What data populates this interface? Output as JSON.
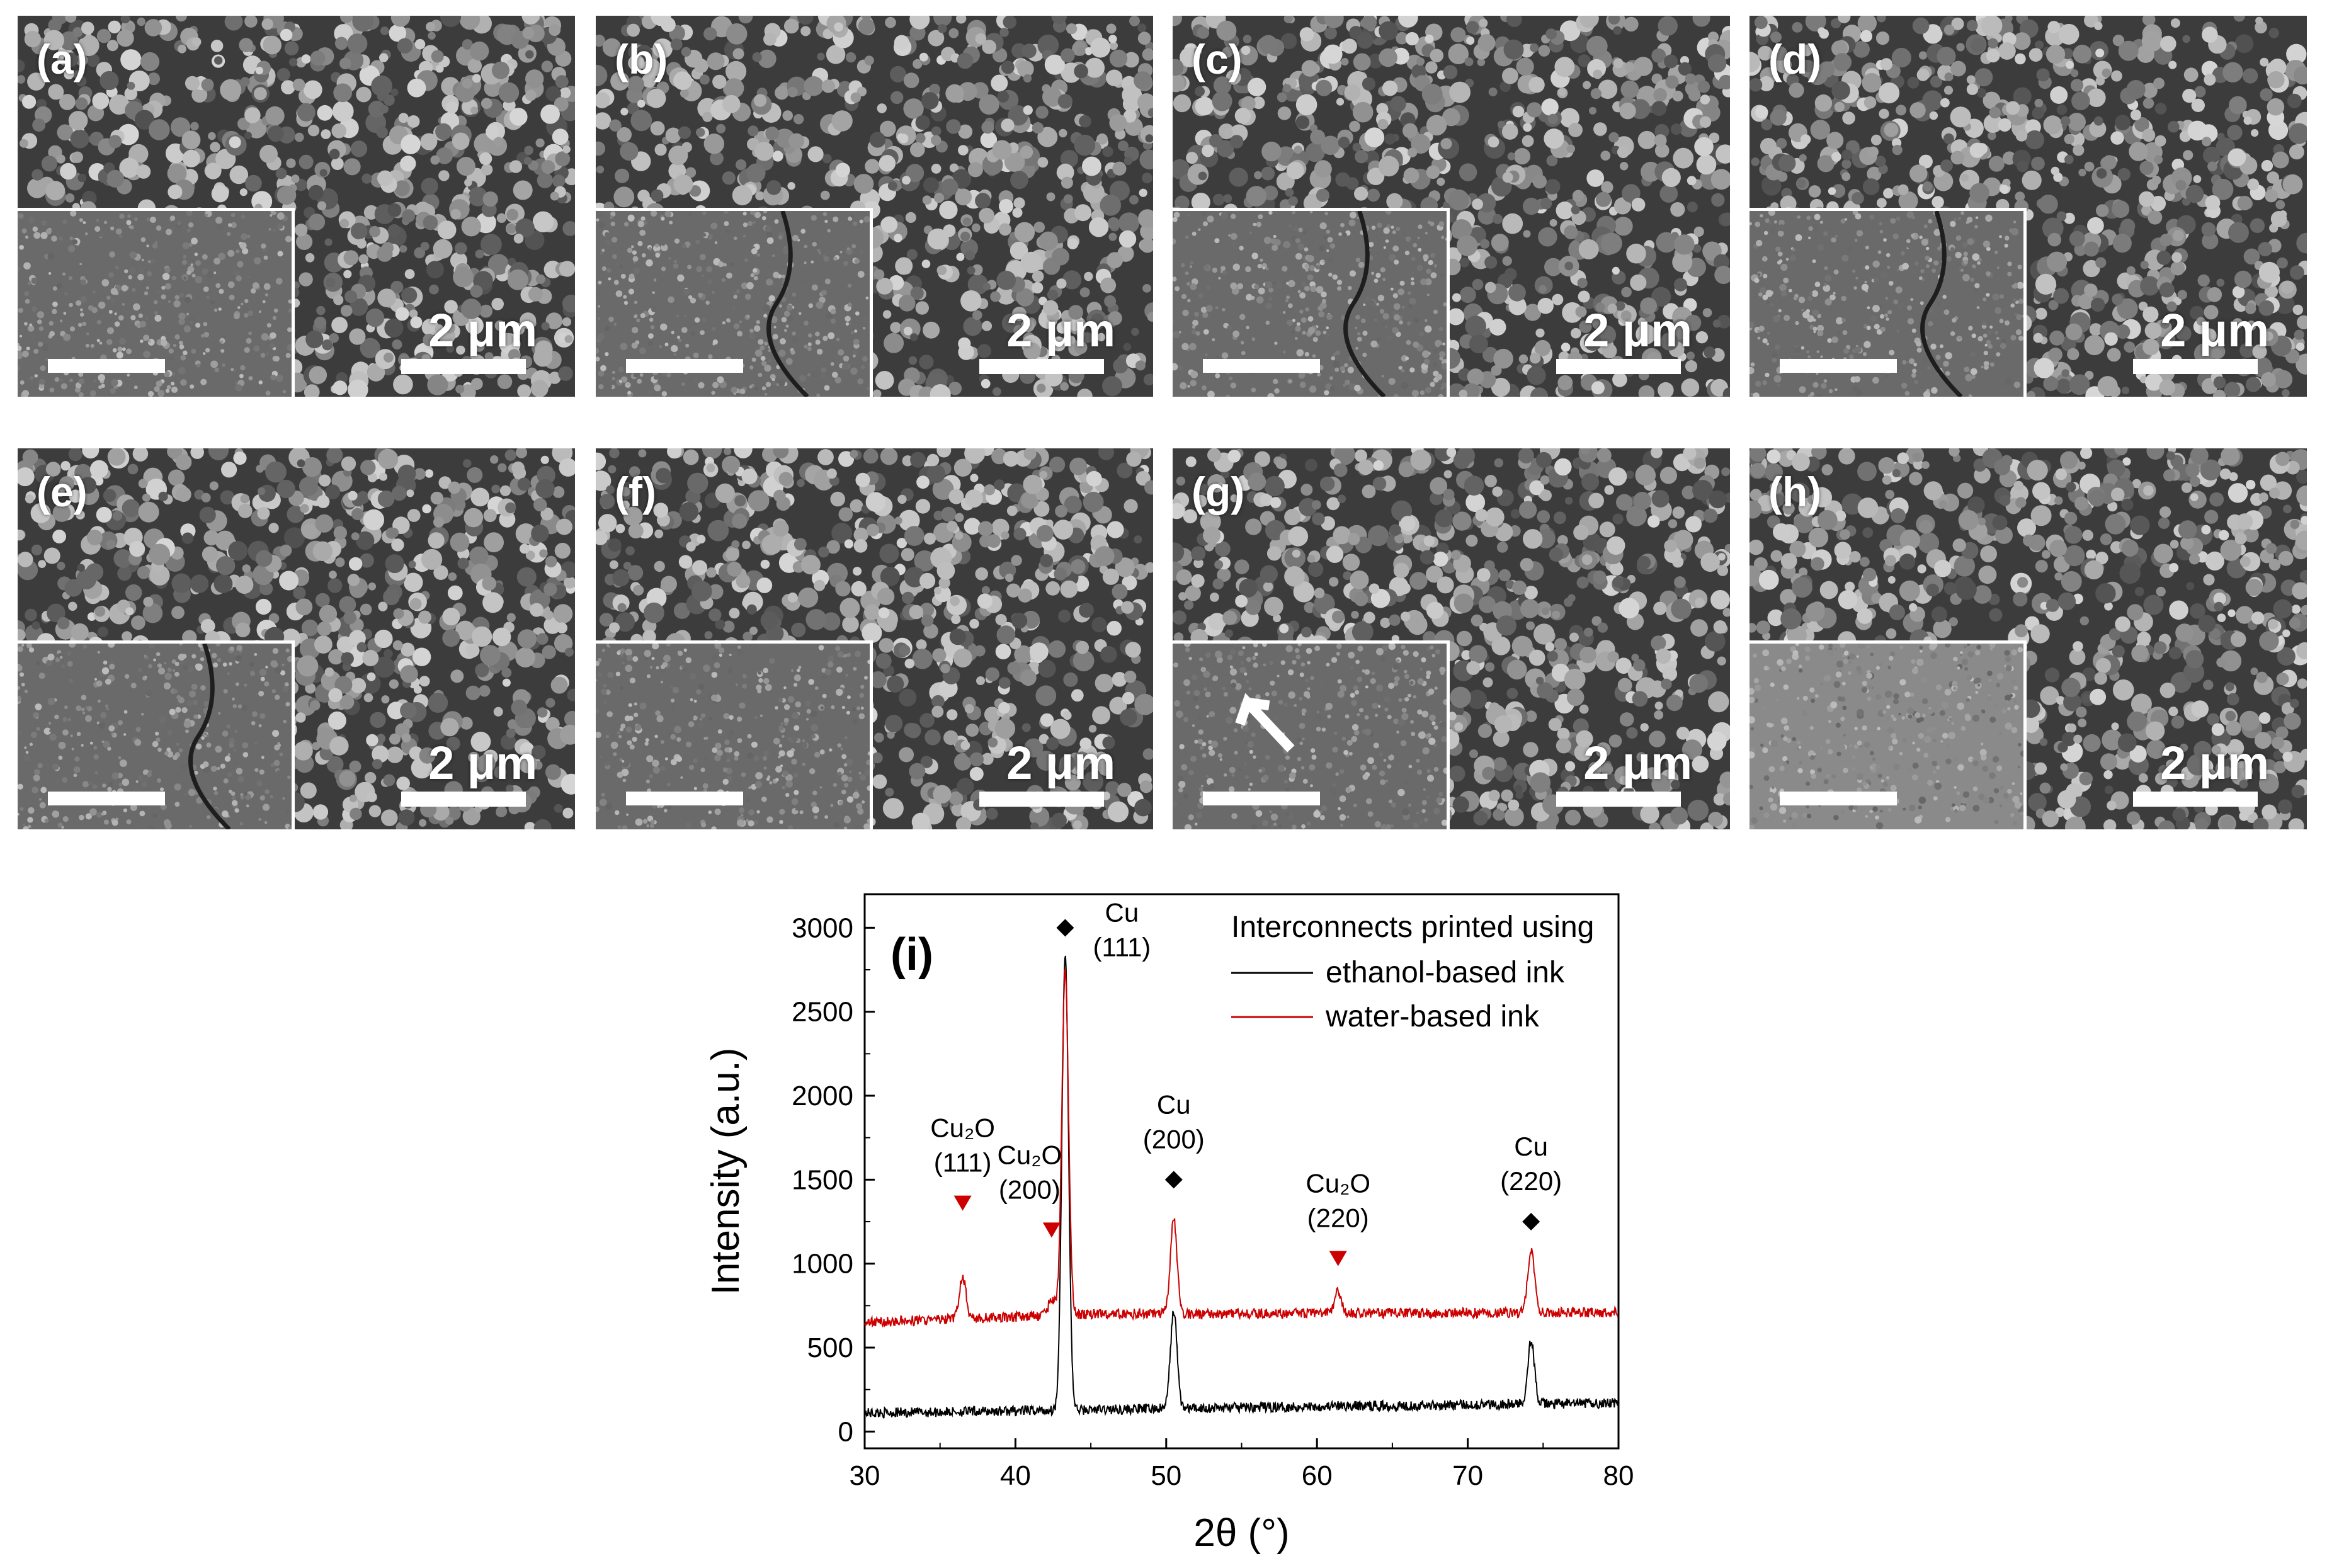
{
  "panels": [
    {
      "label": "(a)",
      "scale": "2 μm"
    },
    {
      "label": "(b)",
      "scale": "2 μm"
    },
    {
      "label": "(c)",
      "scale": "2 μm"
    },
    {
      "label": "(d)",
      "scale": "2 μm"
    },
    {
      "label": "(e)",
      "scale": "2 μm"
    },
    {
      "label": "(f)",
      "scale": "2 μm"
    },
    {
      "label": "(g)",
      "scale": "2 μm"
    },
    {
      "label": "(h)",
      "scale": "2 μm"
    }
  ],
  "chart_data": {
    "type": "line",
    "panel_label": "(i)",
    "xlabel": "2θ (°)",
    "ylabel": "Intensity (a.u.)",
    "xlim": [
      30,
      80
    ],
    "ylim": [
      -100,
      3200
    ],
    "xticks": [
      30,
      40,
      50,
      60,
      70,
      80
    ],
    "yticks": [
      0,
      500,
      1000,
      1500,
      2000,
      2500,
      3000
    ],
    "legend_title": "Interconnects printed using",
    "legend_position": "top-right",
    "series": [
      {
        "name": "ethanol-based ink",
        "color": "#000000",
        "baseline": [
          [
            30,
            110
          ],
          [
            45,
            130
          ],
          [
            60,
            150
          ],
          [
            80,
            170
          ]
        ],
        "peaks": [
          [
            43.3,
            2700
          ],
          [
            50.5,
            580
          ],
          [
            74.2,
            380
          ]
        ]
      },
      {
        "name": "water-based ink",
        "color": "#cc0000",
        "baseline": [
          [
            30,
            650
          ],
          [
            45,
            700
          ],
          [
            80,
            710
          ]
        ],
        "peaks": [
          [
            36.5,
            250
          ],
          [
            42.4,
            100
          ],
          [
            43.3,
            2060
          ],
          [
            50.5,
            560
          ],
          [
            61.4,
            130
          ],
          [
            74.2,
            380
          ]
        ]
      }
    ],
    "annotations": [
      {
        "x": 43.3,
        "label": [
          "Cu",
          "(111)"
        ],
        "marker": "diamond",
        "marker_y": 3000,
        "color": "#000000"
      },
      {
        "x": 50.5,
        "label": [
          "Cu",
          "(200)"
        ],
        "marker": "diamond",
        "marker_y": 1500,
        "color": "#000000"
      },
      {
        "x": 74.2,
        "label": [
          "Cu",
          "(220)"
        ],
        "marker": "diamond",
        "marker_y": 1250,
        "color": "#000000"
      },
      {
        "x": 36.5,
        "label": [
          "Cu₂O",
          "(111)"
        ],
        "marker": "triangle",
        "marker_y": 1360,
        "color": "#cc0000"
      },
      {
        "x": 42.4,
        "label": [
          "Cu₂O",
          "(200)"
        ],
        "marker": "triangle",
        "marker_y": 1200,
        "color": "#cc0000"
      },
      {
        "x": 61.4,
        "label": [
          "Cu₂O",
          "(220)"
        ],
        "marker": "triangle",
        "marker_y": 1030,
        "color": "#cc0000"
      }
    ]
  }
}
